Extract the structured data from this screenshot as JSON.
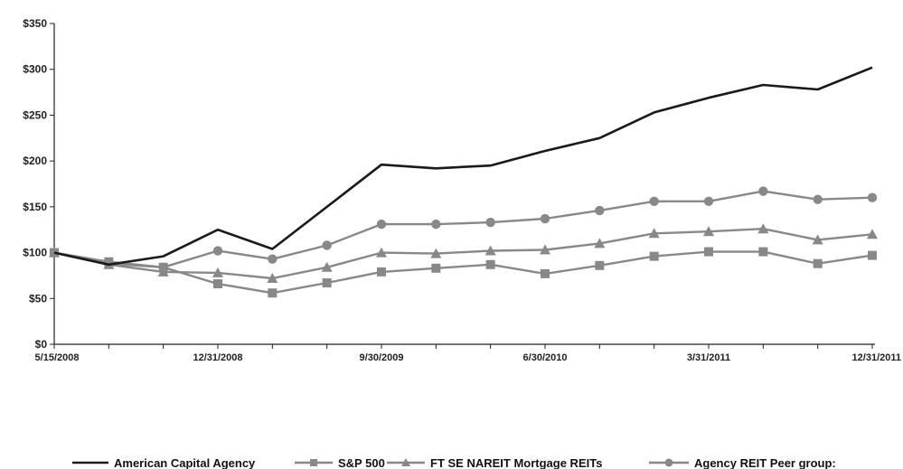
{
  "chart_data": {
    "type": "line",
    "title": "",
    "xlabel": "",
    "ylabel": "",
    "ylim": [
      0,
      350
    ],
    "y_ticks": [
      "$0",
      "$50",
      "$100",
      "$150",
      "$200",
      "$250",
      "$300",
      "$350"
    ],
    "x_tick_labels": [
      "5/15/2008",
      "12/31/2008",
      "9/30/2009",
      "6/30/2010",
      "3/31/2011",
      "12/31/2011"
    ],
    "x": [
      "5/15/2008",
      "6/30/2008",
      "9/30/2008",
      "12/31/2008",
      "3/31/2009",
      "6/30/2009",
      "9/30/2009",
      "12/31/2009",
      "3/31/2010",
      "6/30/2010",
      "9/30/2010",
      "12/31/2010",
      "3/31/2011",
      "6/30/2011",
      "9/30/2011",
      "12/31/2011"
    ],
    "grid": false,
    "legend_position": "bottom",
    "series": [
      {
        "name": "American Capital Agency",
        "marker": "none",
        "color": "#1a1a1a",
        "values": [
          100,
          87,
          96,
          125,
          104,
          150,
          196,
          192,
          195,
          211,
          225,
          253,
          269,
          283,
          278,
          302
        ]
      },
      {
        "name": "S&P 500",
        "marker": "square",
        "color": "#888888",
        "values": [
          100,
          90,
          84,
          66,
          56,
          67,
          79,
          83,
          87,
          77,
          86,
          96,
          101,
          101,
          88,
          97
        ]
      },
      {
        "name": "FTSE NAREIT Mortgage REITs",
        "marker": "triangle",
        "color": "#888888",
        "values": [
          100,
          87,
          79,
          78,
          72,
          84,
          100,
          99,
          102,
          103,
          110,
          121,
          123,
          126,
          114,
          120
        ]
      },
      {
        "name": "Agency REIT Peer group:",
        "marker": "circle",
        "color": "#888888",
        "values": [
          100,
          88,
          84,
          102,
          93,
          108,
          131,
          131,
          133,
          137,
          146,
          156,
          156,
          167,
          158,
          160
        ]
      }
    ]
  },
  "legend": {
    "items": [
      "American Capital Agency",
      "S&P 500",
      "FT SE NAREIT Mortgage REITs",
      "Agency REIT Peer group:"
    ]
  }
}
